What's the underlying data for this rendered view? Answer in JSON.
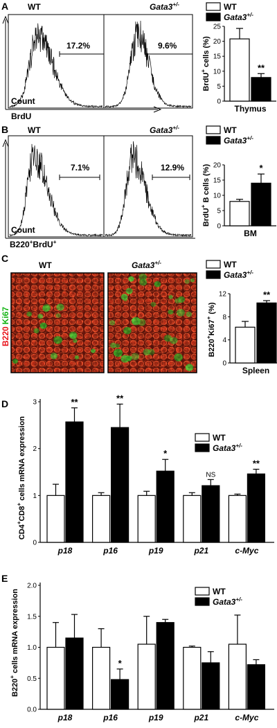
{
  "panels": {
    "A": {
      "letter": "A",
      "hist_titles": [
        "WT",
        "Gata3"
      ],
      "hist_title_sup": "+/-",
      "hist_pcts": [
        "17.2%",
        "9.6%"
      ],
      "ylabel": "Count",
      "xlabel": "BrdU",
      "legend": {
        "wt": "WT",
        "mut": "Gata3",
        "mut_sup": "+/-"
      },
      "bar_ylabel_parts": [
        "BrdU",
        "+",
        " cells (%)"
      ],
      "bar_xlabel": "Thymus",
      "yticks": [
        "0",
        "5",
        "10",
        "15",
        "20",
        "25"
      ],
      "sig": "**"
    },
    "B": {
      "letter": "B",
      "hist_titles": [
        "WT",
        "Gata3"
      ],
      "hist_title_sup": "+/-",
      "hist_pcts": [
        "7.1%",
        "12.9%"
      ],
      "ylabel": "Count",
      "xlabel_parts": [
        "B220",
        "+",
        "BrdU",
        "+"
      ],
      "legend": {
        "wt": "WT",
        "mut": "Gata3",
        "mut_sup": "+/-"
      },
      "bar_ylabel_parts": [
        "BrdU",
        "+",
        " B cells (%)"
      ],
      "bar_xlabel": "BM",
      "yticks": [
        "0",
        "5",
        "10",
        "15",
        "20"
      ],
      "sig": "*"
    },
    "C": {
      "letter": "C",
      "img_titles": [
        "WT",
        "Gata3"
      ],
      "img_title_sup": "+/-",
      "stain_red": "B220",
      "stain_green": "Ki67",
      "legend": {
        "wt": "WT",
        "mut": "Gata3",
        "mut_sup": "+/-"
      },
      "bar_ylabel_parts": [
        "B220",
        "+",
        "Ki67",
        "+",
        " (%)"
      ],
      "bar_xlabel": "Spleen",
      "yticks": [
        "0",
        "4",
        "8",
        "12"
      ],
      "sig": "**"
    },
    "D": {
      "letter": "D",
      "ylabel_parts": [
        "CD4",
        "+",
        "CD8",
        "+",
        " cells mRNA expression"
      ],
      "legend": {
        "wt": "WT",
        "mut": "Gata3",
        "mut_sup": "+/-"
      },
      "yticks": [
        "0",
        "1",
        "2",
        "3"
      ],
      "categories": [
        "p18",
        "p16",
        "p19",
        "p21",
        "c-Myc"
      ],
      "sig": [
        "**",
        "**",
        "*",
        "NS",
        "**"
      ]
    },
    "E": {
      "letter": "E",
      "ylabel_parts": [
        "B220",
        "+",
        " cells mRNA expression"
      ],
      "legend": {
        "wt": "WT",
        "mut": "Gata3",
        "mut_sup": "+/-"
      },
      "yticks": [
        "0.0",
        "0.5",
        "1.0",
        "1.5",
        "2.0"
      ],
      "categories": [
        "p18",
        "p16",
        "p19",
        "p21",
        "c-Myc"
      ],
      "sig": [
        "",
        "*",
        "",
        "",
        ""
      ]
    }
  },
  "chart_data": [
    {
      "type": "bar",
      "categories": [
        "Thymus"
      ],
      "series": [
        {
          "name": "WT",
          "values": [
            20.8
          ],
          "err": [
            3.5
          ]
        },
        {
          "name": "Gata3+/-",
          "values": [
            7.9
          ],
          "err": [
            1.3
          ]
        }
      ],
      "xlabel": "Thymus",
      "ylabel": "BrdU+ cells (%)",
      "ylim": [
        0,
        25
      ]
    },
    {
      "type": "bar",
      "categories": [
        "BM"
      ],
      "series": [
        {
          "name": "WT",
          "values": [
            8.0
          ],
          "err": [
            0.7
          ]
        },
        {
          "name": "Gata3+/-",
          "values": [
            14.0
          ],
          "err": [
            3.0
          ]
        }
      ],
      "xlabel": "BM",
      "ylabel": "BrdU+ B cells (%)",
      "ylim": [
        0,
        20
      ]
    },
    {
      "type": "bar",
      "categories": [
        "Spleen"
      ],
      "series": [
        {
          "name": "WT",
          "values": [
            6.2
          ],
          "err": [
            1.0
          ]
        },
        {
          "name": "Gata3+/-",
          "values": [
            10.4
          ],
          "err": [
            0.4
          ]
        }
      ],
      "xlabel": "Spleen",
      "ylabel": "B220+Ki67+ (%)",
      "ylim": [
        0,
        12
      ]
    },
    {
      "type": "bar",
      "categories": [
        "p18",
        "p16",
        "p19",
        "p21",
        "c-Myc"
      ],
      "series": [
        {
          "name": "WT",
          "values": [
            1.0,
            1.0,
            1.0,
            1.0,
            1.0
          ],
          "err": [
            0.24,
            0.06,
            0.09,
            0.06,
            0.03
          ]
        },
        {
          "name": "Gata3+/-",
          "values": [
            2.57,
            2.45,
            1.52,
            1.21,
            1.46
          ],
          "err": [
            0.3,
            0.5,
            0.25,
            0.13,
            0.1
          ]
        }
      ],
      "ylabel": "CD4+CD8+ cells mRNA expression",
      "ylim": [
        0,
        3
      ]
    },
    {
      "type": "bar",
      "categories": [
        "p18",
        "p16",
        "p19",
        "p21",
        "c-Myc"
      ],
      "series": [
        {
          "name": "WT",
          "values": [
            1.0,
            1.0,
            1.05,
            1.0,
            1.05
          ],
          "err": [
            0.4,
            0.3,
            0.45,
            0.02,
            0.47
          ]
        },
        {
          "name": "Gata3+/-",
          "values": [
            1.15,
            0.48,
            1.4,
            0.75,
            0.72
          ],
          "err": [
            0.38,
            0.17,
            0.05,
            0.18,
            0.08
          ]
        }
      ],
      "ylabel": "B220+ cells mRNA expression",
      "ylim": [
        0,
        2
      ]
    }
  ]
}
